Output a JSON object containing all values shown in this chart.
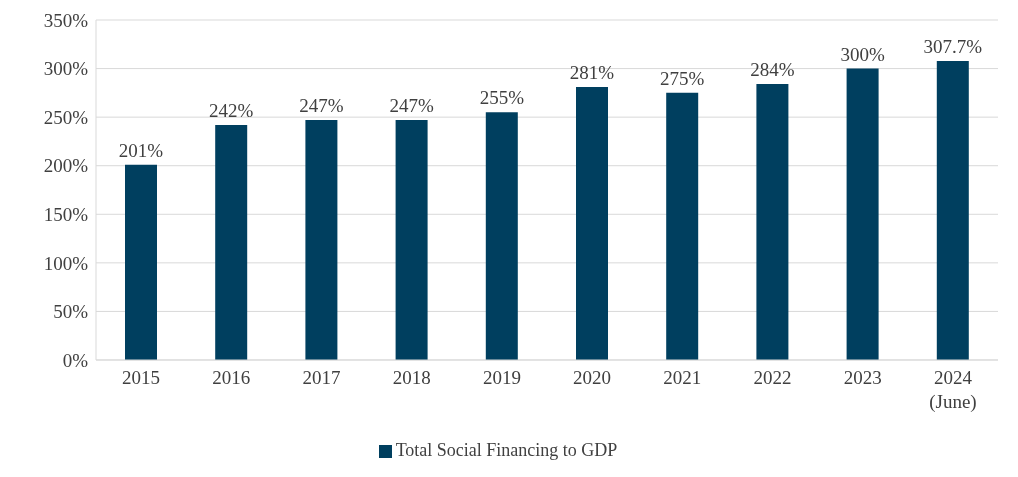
{
  "chart_data": {
    "type": "bar",
    "categories": [
      "2015",
      "2016",
      "2017",
      "2018",
      "2019",
      "2020",
      "2021",
      "2022",
      "2023",
      "2024\n(June)"
    ],
    "series": [
      {
        "name": "Total Social Financing to GDP",
        "color": "#003f5f",
        "values": [
          201,
          242,
          247,
          247,
          255,
          281,
          275,
          284,
          300,
          307.7
        ],
        "value_labels": [
          "201%",
          "242%",
          "247%",
          "247%",
          "255%",
          "281%",
          "275%",
          "284%",
          "300%",
          "307.7%"
        ]
      }
    ],
    "ylim": [
      0,
      350
    ],
    "yticks": [
      {
        "value": 0,
        "label": "0%"
      },
      {
        "value": 50,
        "label": "50%"
      },
      {
        "value": 100,
        "label": "100%"
      },
      {
        "value": 150,
        "label": "150%"
      },
      {
        "value": 200,
        "label": "200%"
      },
      {
        "value": 250,
        "label": "250%"
      },
      {
        "value": 300,
        "label": "300%"
      },
      {
        "value": 350,
        "label": "350%"
      }
    ],
    "grid": "y",
    "legend": "bottom"
  }
}
